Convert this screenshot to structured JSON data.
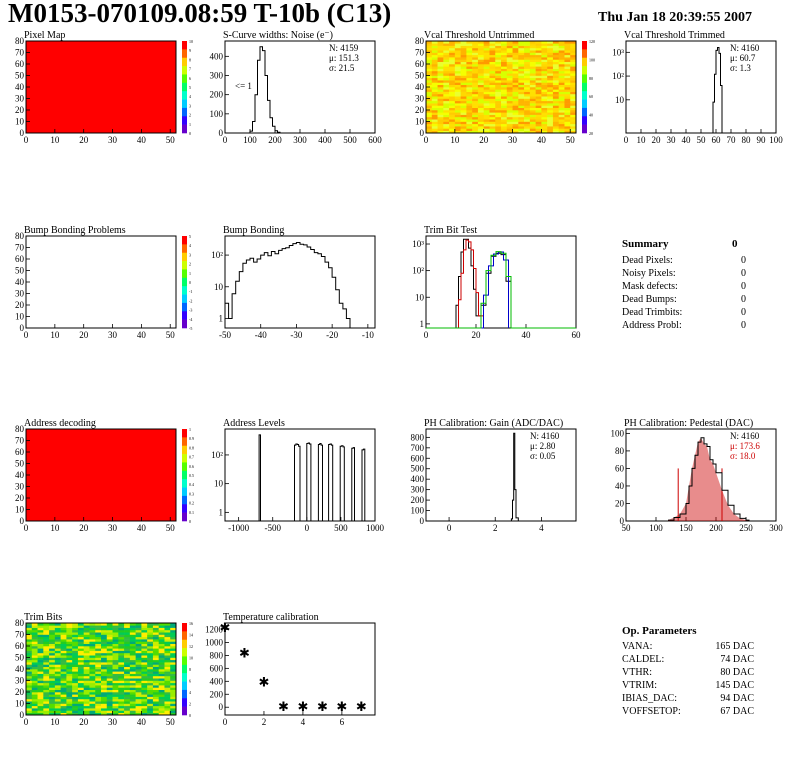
{
  "header": {
    "title": "M0153-070109.08:59 T-10b (C13)",
    "date": "Thu Jan 18 20:39:55 2007"
  },
  "colors": {
    "hist_line": "#000000",
    "map_red": "#ff0000",
    "trim_red": "#cc0000",
    "trim_blue": "#0000cc",
    "trim_green": "#00bb00",
    "pedestal_fill": "#cc0000",
    "stat_red": "#cc0000"
  },
  "chart_data": [
    {
      "id": "pixel_map",
      "type": "heatmap",
      "title": "Pixel Map",
      "xlim": [
        0,
        52
      ],
      "ylim": [
        0,
        80
      ],
      "xticks": [
        0,
        10,
        20,
        30,
        40,
        50
      ],
      "yticks": [
        0,
        10,
        20,
        30,
        40,
        50,
        60,
        70,
        80
      ],
      "fill": "uniform-max",
      "colorbar_ticks": [
        "10",
        "9",
        "8",
        "7",
        "6",
        "5",
        "4",
        "3",
        "2",
        "1",
        "0"
      ]
    },
    {
      "id": "scurve_noise",
      "type": "line",
      "title": "S-Curve widths: Noise (e⁻)",
      "xlim": [
        0,
        600
      ],
      "ylim": [
        0,
        480
      ],
      "xticks": [
        0,
        100,
        200,
        300,
        400,
        500,
        600
      ],
      "yticks": [
        0,
        100,
        200,
        300,
        400
      ],
      "annotation": "<= 1",
      "stats": [
        "N: 4159",
        "μ: 151.3",
        "σ: 21.5"
      ],
      "x": [
        90,
        100,
        110,
        120,
        130,
        140,
        150,
        160,
        170,
        180,
        190,
        200,
        210,
        220
      ],
      "y": [
        0,
        10,
        60,
        200,
        380,
        450,
        430,
        300,
        170,
        80,
        35,
        12,
        4,
        0
      ]
    },
    {
      "id": "vcal_untrimmed",
      "type": "heatmap",
      "title": "Vcal Threshold Untrimmed",
      "xlim": [
        0,
        52
      ],
      "ylim": [
        0,
        80
      ],
      "xticks": [
        0,
        10,
        20,
        30,
        40,
        50
      ],
      "yticks": [
        0,
        10,
        20,
        30,
        40,
        50,
        60,
        70,
        80
      ],
      "colorbar_ticks": [
        "120",
        "100",
        "80",
        "60",
        "40",
        "20"
      ]
    },
    {
      "id": "vcal_trimmed",
      "type": "line",
      "title": "Vcal Threshold Trimmed",
      "xlim": [
        0,
        100
      ],
      "log_y": true,
      "ylim_log": [
        0.4,
        3000
      ],
      "xticks": [
        0,
        10,
        20,
        30,
        40,
        50,
        60,
        70,
        80,
        90,
        100
      ],
      "yticks": [
        {
          "v": 10,
          "label": "10"
        },
        {
          "v": 100,
          "label": "10²"
        },
        {
          "v": 1000,
          "label": "10³"
        }
      ],
      "stats": [
        "N: 4160",
        "μ: 60.7",
        "σ: 1.3"
      ],
      "x": [
        57,
        58,
        59,
        60,
        61,
        62,
        63,
        64
      ],
      "y": [
        0.4,
        8,
        120,
        1200,
        1600,
        900,
        40,
        0.4
      ]
    },
    {
      "id": "bump_problems",
      "type": "heatmap",
      "title": "Bump Bonding Problems",
      "xlim": [
        0,
        52
      ],
      "ylim": [
        0,
        80
      ],
      "xticks": [
        0,
        10,
        20,
        30,
        40,
        50
      ],
      "yticks": [
        0,
        10,
        20,
        30,
        40,
        50,
        60,
        70,
        80
      ],
      "fill": "empty",
      "colorbar_ticks": [
        "5",
        "4",
        "3",
        "2",
        "1",
        "0",
        "-1",
        "-2",
        "-3",
        "-4",
        "-5"
      ]
    },
    {
      "id": "bump_bonding",
      "type": "line",
      "title": "Bump Bonding",
      "xlim": [
        -50,
        -8
      ],
      "log_y": true,
      "ylim_log": [
        0.5,
        400
      ],
      "xticks": [
        -50,
        -40,
        -30,
        -20,
        -10
      ],
      "yticks": [
        {
          "v": 1,
          "label": "1"
        },
        {
          "v": 10,
          "label": "10"
        },
        {
          "v": 100,
          "label": "10²"
        }
      ],
      "x": [
        -50,
        -49,
        -48,
        -47,
        -46,
        -45,
        -44,
        -43,
        -42,
        -41,
        -40,
        -39,
        -38,
        -37,
        -36,
        -35,
        -34,
        -33,
        -32,
        -31,
        -30,
        -29,
        -28,
        -27,
        -26,
        -25,
        -24,
        -23,
        -22,
        -21,
        -20,
        -19,
        -18,
        -17,
        -16,
        -15
      ],
      "y": [
        3,
        1,
        6,
        15,
        30,
        55,
        70,
        80,
        60,
        75,
        100,
        120,
        95,
        130,
        110,
        140,
        160,
        170,
        200,
        230,
        250,
        220,
        210,
        180,
        150,
        120,
        110,
        90,
        60,
        40,
        20,
        8,
        3,
        2,
        1,
        0.5
      ]
    },
    {
      "id": "trim_bit_test",
      "type": "line",
      "title": "Trim Bit Test",
      "xlim": [
        0,
        60
      ],
      "log_y": true,
      "ylim_log": [
        0.7,
        2000
      ],
      "xticks": [
        0,
        20,
        40,
        60
      ],
      "yticks": [
        {
          "v": 1,
          "label": "1"
        },
        {
          "v": 10,
          "label": "10"
        },
        {
          "v": 100,
          "label": "10²"
        },
        {
          "v": 1000,
          "label": "10³"
        }
      ],
      "series": [
        {
          "color": "#000000",
          "x": [
            10,
            12,
            13,
            14,
            15,
            16,
            17,
            18,
            19,
            20,
            22
          ],
          "y": [
            0.7,
            5,
            60,
            500,
            1500,
            1500,
            700,
            150,
            20,
            2,
            0.7
          ]
        },
        {
          "color": "#cc0000",
          "x": [
            11,
            13,
            14,
            15,
            16,
            17,
            18,
            19,
            20,
            21,
            23
          ],
          "y": [
            0.7,
            8,
            80,
            600,
            1400,
            1200,
            600,
            120,
            15,
            2,
            0.7
          ]
        },
        {
          "color": "#000000",
          "x": [
            20,
            22,
            24,
            26,
            28,
            30,
            32,
            34
          ],
          "y": [
            0.7,
            5,
            80,
            350,
            450,
            400,
            40,
            0.7
          ]
        },
        {
          "color": "#0000cc",
          "x": [
            21,
            23,
            25,
            27,
            29,
            31,
            33
          ],
          "y": [
            0.7,
            12,
            150,
            420,
            500,
            250,
            0.7
          ]
        },
        {
          "color": "#00bb00",
          "x": [
            0,
            20,
            22,
            24,
            26,
            28,
            30,
            32,
            34,
            60
          ],
          "y": [
            0.7,
            0.7,
            6,
            100,
            380,
            520,
            450,
            60,
            0.7,
            0.7
          ]
        }
      ]
    },
    {
      "id": "address_decoding",
      "type": "heatmap",
      "title": "Address decoding",
      "xlim": [
        0,
        52
      ],
      "ylim": [
        0,
        80
      ],
      "xticks": [
        0,
        10,
        20,
        30,
        40,
        50
      ],
      "yticks": [
        0,
        10,
        20,
        30,
        40,
        50,
        60,
        70,
        80
      ],
      "fill": "uniform-max",
      "colorbar_ticks": [
        "1",
        "0.9",
        "0.8",
        "0.7",
        "0.6",
        "0.5",
        "0.4",
        "0.3",
        "0.2",
        "0.1",
        "0"
      ]
    },
    {
      "id": "address_levels",
      "type": "line",
      "title": "Address Levels",
      "xlim": [
        -1200,
        1000
      ],
      "log_y": true,
      "ylim_log": [
        0.5,
        800
      ],
      "xticks": [
        -1000,
        -500,
        0,
        500,
        1000
      ],
      "yticks": [
        {
          "v": 1,
          "label": "1"
        },
        {
          "v": 10,
          "label": "10"
        },
        {
          "v": 100,
          "label": "10²"
        }
      ],
      "x": [
        -720,
        -700,
        -680,
        -200,
        -180,
        -160,
        -140,
        -120,
        -100,
        -20,
        0,
        20,
        40,
        60,
        150,
        170,
        190,
        210,
        230,
        300,
        320,
        340,
        360,
        380,
        470,
        490,
        510,
        530,
        550,
        640,
        660,
        680,
        700,
        720,
        790,
        810,
        830,
        850
      ],
      "y": [
        0.5,
        500,
        0.5,
        0.5,
        220,
        240,
        230,
        200,
        0.5,
        0.5,
        250,
        260,
        240,
        0.5,
        0.5,
        230,
        250,
        220,
        0.5,
        0.5,
        230,
        240,
        220,
        0.5,
        0.5,
        200,
        210,
        190,
        0.5,
        0.5,
        170,
        180,
        0.5,
        0.5,
        0.5,
        150,
        160,
        0.5
      ]
    },
    {
      "id": "ph_gain",
      "type": "line",
      "title": "PH Calibration: Gain (ADC/DAC)",
      "xlim": [
        -1,
        5.5
      ],
      "ylim": [
        0,
        880
      ],
      "xticks": [
        0,
        2,
        4
      ],
      "yticks": [
        0,
        100,
        200,
        300,
        400,
        500,
        600,
        700,
        800
      ],
      "stats": [
        "N: 4160",
        "μ: 2.80",
        "σ: 0.05"
      ],
      "x": [
        2.6,
        2.7,
        2.75,
        2.8,
        2.85,
        2.9,
        3.0
      ],
      "y": [
        0,
        20,
        200,
        840,
        300,
        30,
        0
      ]
    },
    {
      "id": "ph_pedestal",
      "type": "line",
      "title": "PH Calibration: Pedestal (DAC)",
      "xlim": [
        50,
        300
      ],
      "ylim": [
        0,
        105
      ],
      "xticks": [
        50,
        100,
        150,
        200,
        250,
        300
      ],
      "yticks": [
        0,
        20,
        40,
        60,
        80,
        100
      ],
      "stats": [
        "N: 4160",
        "μ: 173.6",
        "σ: 18.0"
      ],
      "markers": [
        137,
        210
      ],
      "x": [
        120,
        130,
        140,
        150,
        155,
        160,
        165,
        170,
        175,
        180,
        185,
        190,
        195,
        200,
        210,
        220,
        230,
        240,
        250,
        255
      ],
      "y": [
        1,
        4,
        8,
        20,
        40,
        60,
        75,
        90,
        95,
        88,
        85,
        70,
        65,
        55,
        35,
        18,
        8,
        3,
        1,
        0
      ]
    },
    {
      "id": "trim_bits_map",
      "type": "heatmap",
      "title": "Trim Bits",
      "xlim": [
        0,
        52
      ],
      "ylim": [
        0,
        80
      ],
      "xticks": [
        0,
        10,
        20,
        30,
        40,
        50
      ],
      "yticks": [
        0,
        10,
        20,
        30,
        40,
        50,
        60,
        70,
        80
      ],
      "colorbar_ticks": [
        "16",
        "14",
        "12",
        "10",
        "8",
        "6",
        "4",
        "2",
        "0"
      ]
    },
    {
      "id": "temperature_calibration",
      "type": "scatter",
      "title": "Temperature calibration",
      "xlim": [
        0,
        7.7
      ],
      "ylim": [
        -120,
        1300
      ],
      "xticks": [
        0,
        2,
        4,
        6
      ],
      "yticks": [
        0,
        200,
        400,
        600,
        800,
        1000,
        1200
      ],
      "marker": "✱",
      "x": [
        0,
        1,
        2,
        3,
        4,
        5,
        6,
        7
      ],
      "y": [
        1220,
        830,
        380,
        0,
        0,
        0,
        0,
        0
      ]
    }
  ],
  "summary": {
    "title": "Summary",
    "total": "0",
    "rows": [
      {
        "label": "Dead Pixels:",
        "value": "0"
      },
      {
        "label": "Noisy Pixels:",
        "value": "0"
      },
      {
        "label": "Mask defects:",
        "value": "0"
      },
      {
        "label": "Dead Bumps:",
        "value": "0"
      },
      {
        "label": "Dead Trimbits:",
        "value": "0"
      },
      {
        "label": "Address Probl:",
        "value": "0"
      }
    ]
  },
  "op_parameters": {
    "title": "Op. Parameters",
    "rows": [
      {
        "label": "VANA:",
        "value": "165 DAC"
      },
      {
        "label": "CALDEL:",
        "value": "74 DAC"
      },
      {
        "label": "VTHR:",
        "value": "80 DAC"
      },
      {
        "label": "VTRIM:",
        "value": "145 DAC"
      },
      {
        "label": "IBIAS_DAC:",
        "value": "94 DAC"
      },
      {
        "label": "VOFFSETOP:",
        "value": "67 DAC"
      }
    ]
  }
}
